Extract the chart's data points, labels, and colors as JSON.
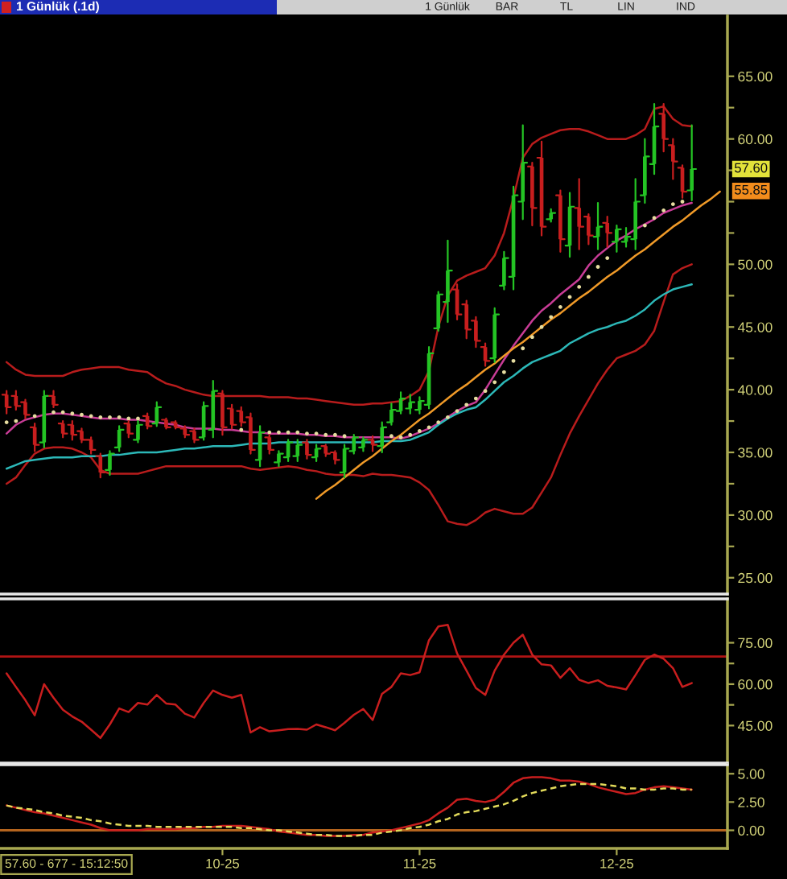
{
  "chart_data": [
    {
      "type": "candlestick",
      "title": "1 Günlük (.1d)",
      "categories": [
        null,
        null,
        null,
        null,
        null,
        null,
        null,
        null,
        null,
        null,
        null,
        null,
        null,
        null,
        null,
        null,
        null,
        null,
        null,
        null,
        null,
        null,
        null,
        null,
        null,
        null,
        null,
        null,
        null,
        null,
        null,
        null,
        null,
        null,
        null,
        null,
        null,
        null,
        null,
        null,
        null,
        null,
        null,
        null,
        null,
        null,
        null,
        null,
        null,
        null,
        null,
        null,
        null,
        null,
        null,
        null,
        null,
        null,
        null,
        null,
        null,
        null,
        null,
        null,
        null,
        null,
        null,
        null,
        null,
        null,
        null,
        null,
        null,
        null,
        null,
        null,
        null
      ],
      "ohlc": [
        [
          39.6,
          39.9,
          38.1,
          38.6
        ],
        [
          39.5,
          39.9,
          38.4,
          38.7
        ],
        [
          39.0,
          39.2,
          37.7,
          38.0
        ],
        [
          37.0,
          37.3,
          35.1,
          35.6
        ],
        [
          35.8,
          39.9,
          35.4,
          39.5
        ],
        [
          39.5,
          39.9,
          38.6,
          38.8
        ],
        [
          37.3,
          37.5,
          36.2,
          36.5
        ],
        [
          37.2,
          37.5,
          36.0,
          36.4
        ],
        [
          36.7,
          36.9,
          35.8,
          36.0
        ],
        [
          36.0,
          36.2,
          34.9,
          35.2
        ],
        [
          34.7,
          34.9,
          33.0,
          33.4
        ],
        [
          33.6,
          35.1,
          33.2,
          34.9
        ],
        [
          35.4,
          37.1,
          35.1,
          36.8
        ],
        [
          37.3,
          37.5,
          36.2,
          36.5
        ],
        [
          36.0,
          37.5,
          35.8,
          37.2
        ],
        [
          37.9,
          38.1,
          36.9,
          37.1
        ],
        [
          37.3,
          39.0,
          37.1,
          38.6
        ],
        [
          37.6,
          37.7,
          36.9,
          37.0
        ],
        [
          37.4,
          37.5,
          36.9,
          37.0
        ],
        [
          36.9,
          37.1,
          36.2,
          36.4
        ],
        [
          36.7,
          36.9,
          35.8,
          36.0
        ],
        [
          36.2,
          39.0,
          36.0,
          38.7
        ],
        [
          36.8,
          40.7,
          36.2,
          39.9
        ],
        [
          39.7,
          39.9,
          36.4,
          37.0
        ],
        [
          38.5,
          38.8,
          36.9,
          37.2
        ],
        [
          38.3,
          38.6,
          37.1,
          37.4
        ],
        [
          37.8,
          38.1,
          34.9,
          35.2
        ],
        [
          34.4,
          37.1,
          33.9,
          36.6
        ],
        [
          36.2,
          36.4,
          34.9,
          35.2
        ],
        [
          34.2,
          35.1,
          33.9,
          34.9
        ],
        [
          34.6,
          36.0,
          34.3,
          35.8
        ],
        [
          34.7,
          36.0,
          34.3,
          35.6
        ],
        [
          35.8,
          36.0,
          34.5,
          34.8
        ],
        [
          34.6,
          35.6,
          34.3,
          35.3
        ],
        [
          35.5,
          35.6,
          34.7,
          34.9
        ],
        [
          35.0,
          35.1,
          34.1,
          34.4
        ],
        [
          33.4,
          35.6,
          33.0,
          35.3
        ],
        [
          35.1,
          36.4,
          34.9,
          36.2
        ],
        [
          35.4,
          36.2,
          35.1,
          36.0
        ],
        [
          36.0,
          36.3,
          35.1,
          35.6
        ],
        [
          35.5,
          37.4,
          35.0,
          37.0
        ],
        [
          37.4,
          38.9,
          37.2,
          38.4
        ],
        [
          38.3,
          39.8,
          38.1,
          39.3
        ],
        [
          38.5,
          39.6,
          38.1,
          39.0
        ],
        [
          38.4,
          39.4,
          38.1,
          39.1
        ],
        [
          38.8,
          43.4,
          38.5,
          42.9
        ],
        [
          44.9,
          47.8,
          44.7,
          47.6
        ],
        [
          47.0,
          51.9,
          45.4,
          49.5
        ],
        [
          48.0,
          48.4,
          45.6,
          46.0
        ],
        [
          46.8,
          47.1,
          44.1,
          44.8
        ],
        [
          45.5,
          45.8,
          43.4,
          43.9
        ],
        [
          43.4,
          43.7,
          41.9,
          42.3
        ],
        [
          42.5,
          46.5,
          42.2,
          46.0
        ],
        [
          48.3,
          51.0,
          48.0,
          50.5
        ],
        [
          49.0,
          56.2,
          48.0,
          55.5
        ],
        [
          55.0,
          61.1,
          53.6,
          58.1
        ],
        [
          57.8,
          58.1,
          53.1,
          54.5
        ],
        [
          58.5,
          59.8,
          52.3,
          53.0
        ],
        [
          53.6,
          54.4,
          53.4,
          54.1
        ],
        [
          55.5,
          55.9,
          51.0,
          52.0
        ],
        [
          51.5,
          55.7,
          50.6,
          54.6
        ],
        [
          54.5,
          56.8,
          51.2,
          53.0
        ],
        [
          53.8,
          54.0,
          51.6,
          52.3
        ],
        [
          52.2,
          54.9,
          51.2,
          53.0
        ],
        [
          53.3,
          53.8,
          51.4,
          52.5
        ],
        [
          51.8,
          53.1,
          51.0,
          52.8
        ],
        [
          51.8,
          52.9,
          51.4,
          52.2
        ],
        [
          52.0,
          56.8,
          51.2,
          55.0
        ],
        [
          55.5,
          60.0,
          54.9,
          58.6
        ],
        [
          58.0,
          62.8,
          57.2,
          61.0
        ],
        [
          62.0,
          62.8,
          59.0,
          60.0
        ],
        [
          59.5,
          60.0,
          56.8,
          58.2
        ],
        [
          57.7,
          57.9,
          55.3,
          55.8
        ],
        [
          55.9,
          61.1,
          55.1,
          57.6
        ],
        null,
        null,
        null
      ],
      "colors": [
        "#c81e1e",
        "#c81e1e",
        "#c81e1e",
        "#c81e1e",
        "#24c424",
        "#c81e1e",
        "#c81e1e",
        "#c81e1e",
        "#c81e1e",
        "#c81e1e",
        "#c81e1e",
        "#24c424",
        "#24c424",
        "#c81e1e",
        "#24c424",
        "#c81e1e",
        "#24c424",
        "#c81e1e",
        "#c81e1e",
        "#c81e1e",
        "#c81e1e",
        "#24c424",
        "#24c424",
        "#c81e1e",
        "#c81e1e",
        "#c81e1e",
        "#c81e1e",
        "#24c424",
        "#c81e1e",
        "#24c424",
        "#24c424",
        "#24c424",
        "#c81e1e",
        "#24c424",
        "#c81e1e",
        "#c81e1e",
        "#24c424",
        "#24c424",
        "#24c424",
        "#c81e1e",
        "#24c424",
        "#24c424",
        "#24c424",
        "#24c424",
        "#24c424",
        "#24c424",
        "#24c424",
        "#24c424",
        "#c81e1e",
        "#c81e1e",
        "#c81e1e",
        "#c81e1e",
        "#24c424",
        "#24c424",
        "#24c424",
        "#24c424",
        "#c81e1e",
        "#c81e1e",
        "#24c424",
        "#c81e1e",
        "#24c424",
        "#c81e1e",
        "#c81e1e",
        "#24c424",
        "#c81e1e",
        "#24c424",
        "#24c424",
        "#24c424",
        "#24c424",
        "#24c424",
        "#c81e1e",
        "#c81e1e",
        "#c81e1e",
        "#24c424",
        null,
        null,
        null
      ],
      "series": [
        {
          "type": "line",
          "color": "#b81c1c",
          "values": [
            42.2,
            41.6,
            41.2,
            41.1,
            41.1,
            41.1,
            41.1,
            41.4,
            41.6,
            41.7,
            41.8,
            41.8,
            41.8,
            41.6,
            41.5,
            41.4,
            40.9,
            40.5,
            40.3,
            40.0,
            39.8,
            39.6,
            39.5,
            39.5,
            39.5,
            39.5,
            39.5,
            39.5,
            39.4,
            39.4,
            39.4,
            39.3,
            39.3,
            39.2,
            39.1,
            39.0,
            38.9,
            38.8,
            38.8,
            38.9,
            38.9,
            39.0,
            39.1,
            39.5,
            40.0,
            41.5,
            45.0,
            47.5,
            48.7,
            49.1,
            49.4,
            49.7,
            50.7,
            52.5,
            55.3,
            58.5,
            59.6,
            60.1,
            60.4,
            60.7,
            60.8,
            60.8,
            60.6,
            60.3,
            60.0,
            60.0,
            60.0,
            60.3,
            60.8,
            62.4,
            62.6,
            61.6,
            61.1,
            61.0,
            null,
            null,
            null
          ]
        },
        {
          "type": "line",
          "color": "#b81c1c",
          "values": [
            32.5,
            33.0,
            34.0,
            34.9,
            35.3,
            35.4,
            35.4,
            35.3,
            35.0,
            34.6,
            33.6,
            33.3,
            33.3,
            33.3,
            33.3,
            33.5,
            33.7,
            33.9,
            33.9,
            33.9,
            33.9,
            33.9,
            33.9,
            33.9,
            33.9,
            33.9,
            33.7,
            33.6,
            33.7,
            33.8,
            33.9,
            33.8,
            33.6,
            33.5,
            33.3,
            33.2,
            33.2,
            33.2,
            33.1,
            33.3,
            33.2,
            33.2,
            33.1,
            33.0,
            32.6,
            32.0,
            30.8,
            29.5,
            29.3,
            29.2,
            29.6,
            30.2,
            30.5,
            30.3,
            30.1,
            30.1,
            30.6,
            31.8,
            33.0,
            34.8,
            36.5,
            37.9,
            39.2,
            40.5,
            41.6,
            42.5,
            42.8,
            43.1,
            43.6,
            44.7,
            47.0,
            49.2,
            49.7,
            50.0,
            null,
            null,
            null
          ]
        },
        {
          "type": "line",
          "color": "#c83c96",
          "values": [
            36.5,
            37.2,
            37.6,
            37.8,
            38.0,
            38.1,
            38.1,
            38.0,
            37.9,
            37.8,
            37.7,
            37.7,
            37.7,
            37.6,
            37.6,
            37.5,
            37.4,
            37.3,
            37.2,
            37.0,
            36.9,
            36.9,
            36.9,
            36.8,
            36.8,
            36.7,
            36.6,
            36.6,
            36.5,
            36.5,
            36.5,
            36.5,
            36.4,
            36.4,
            36.3,
            36.3,
            36.2,
            36.2,
            36.2,
            36.2,
            36.2,
            36.2,
            36.1,
            36.3,
            36.6,
            36.9,
            37.3,
            37.8,
            38.3,
            38.7,
            39.0,
            40.0,
            41.2,
            42.4,
            43.5,
            44.5,
            45.5,
            46.3,
            46.9,
            47.6,
            48.2,
            48.8,
            49.9,
            50.7,
            51.3,
            51.9,
            52.3,
            52.8,
            53.2,
            53.6,
            54.1,
            54.4,
            54.7,
            54.9,
            null,
            null,
            null
          ]
        },
        {
          "type": "line",
          "color": "#2cb8b8",
          "values": [
            33.7,
            34.0,
            34.3,
            34.4,
            34.5,
            34.6,
            34.6,
            34.6,
            34.7,
            34.7,
            34.7,
            34.8,
            34.8,
            34.9,
            35.0,
            35.0,
            35.0,
            35.1,
            35.2,
            35.3,
            35.3,
            35.4,
            35.5,
            35.5,
            35.5,
            35.6,
            35.7,
            35.7,
            35.7,
            35.8,
            35.8,
            35.8,
            35.8,
            35.8,
            35.8,
            35.8,
            35.8,
            35.8,
            35.8,
            35.8,
            35.9,
            35.9,
            35.9,
            36.0,
            36.3,
            36.6,
            37.2,
            37.7,
            38.1,
            38.4,
            38.6,
            39.2,
            39.9,
            40.6,
            41.1,
            41.7,
            42.2,
            42.5,
            42.8,
            43.1,
            43.7,
            44.1,
            44.5,
            44.8,
            45.0,
            45.3,
            45.5,
            45.9,
            46.4,
            47.1,
            47.6,
            48.0,
            48.2,
            48.4,
            null,
            null,
            null
          ]
        },
        {
          "type": "scatter",
          "marker": "circle",
          "color": "#e6dca0",
          "values": [
            37.4,
            37.5,
            null,
            37.9,
            null,
            38.2,
            38.2,
            38.1,
            38.0,
            37.9,
            37.8,
            37.8,
            37.8,
            37.7,
            37.7,
            null,
            null,
            null,
            null,
            null,
            null,
            null,
            null,
            null,
            null,
            36.8,
            null,
            null,
            36.6,
            36.6,
            36.6,
            36.6,
            36.5,
            36.5,
            36.4,
            36.4,
            36.3,
            null,
            null,
            null,
            null,
            36.3,
            36.2,
            36.4,
            36.7,
            37.0,
            37.4,
            37.8,
            38.3,
            38.8,
            39.3,
            39.9,
            40.6,
            41.4,
            42.3,
            43.3,
            44.2,
            45.0,
            45.8,
            46.6,
            47.4,
            48.2,
            49.0,
            49.8,
            50.5,
            null,
            null,
            null,
            53.1,
            53.7,
            54.3,
            54.8,
            55.0,
            null,
            null,
            null,
            null
          ]
        },
        {
          "type": "line",
          "color": "#f09a28",
          "values": [
            null,
            null,
            null,
            null,
            null,
            null,
            null,
            null,
            null,
            null,
            null,
            null,
            null,
            null,
            null,
            null,
            null,
            null,
            null,
            null,
            null,
            null,
            null,
            null,
            null,
            null,
            null,
            null,
            null,
            null,
            null,
            null,
            null,
            31.3,
            31.9,
            32.4,
            33.0,
            33.6,
            34.2,
            34.7,
            35.3,
            35.9,
            36.4,
            37.0,
            37.6,
            38.1,
            38.7,
            39.3,
            39.9,
            40.4,
            41.0,
            41.6,
            42.1,
            42.7,
            43.3,
            43.8,
            44.4,
            45.0,
            45.6,
            46.1,
            46.7,
            47.3,
            47.8,
            48.4,
            49.0,
            49.5,
            50.1,
            50.7,
            51.2,
            51.8,
            52.4,
            53.0,
            53.5,
            54.1,
            54.7,
            55.2,
            55.8
          ]
        }
      ],
      "ylim": [
        23.7,
        69.8
      ],
      "yticks": [
        {
          "value": 25,
          "label": "25.00"
        },
        {
          "value": 27.5,
          "label": null
        },
        {
          "value": 30,
          "label": "30.00"
        },
        {
          "value": 32.5,
          "label": null
        },
        {
          "value": 35,
          "label": "35.00"
        },
        {
          "value": 37.5,
          "label": null
        },
        {
          "value": 40,
          "label": "40.00"
        },
        {
          "value": 42.5,
          "label": null
        },
        {
          "value": 45,
          "label": "45.00"
        },
        {
          "value": 47.5,
          "label": null
        },
        {
          "value": 50,
          "label": "50.00"
        },
        {
          "value": 52.5,
          "label": null
        },
        {
          "value": 55,
          "label": null
        },
        {
          "value": 57.5,
          "label": null
        },
        {
          "value": 60,
          "label": "60.00"
        },
        {
          "value": 62.5,
          "label": null
        },
        {
          "value": 65,
          "label": "65.00"
        }
      ],
      "tick_labels": "y",
      "annotations": [
        "1 Günlük",
        "BAR",
        "TL",
        "LIN",
        "IND",
        {
          "text": "57.60",
          "y": 57.6
        },
        {
          "text": "55.85",
          "y": 55.85
        }
      ]
    },
    {
      "type": "line",
      "categories": [
        null,
        null,
        null,
        null,
        null,
        null,
        null,
        null,
        null,
        null,
        null,
        null,
        null,
        null,
        null,
        null,
        null,
        null,
        null,
        null,
        null,
        null,
        null,
        null,
        null,
        null,
        null,
        null,
        null,
        null,
        null,
        null,
        null,
        null,
        null,
        null,
        null,
        null,
        null,
        null,
        null,
        null,
        null,
        null,
        null,
        null,
        null,
        null,
        null,
        null,
        null,
        null,
        null,
        null,
        null,
        null,
        null,
        null,
        null,
        null,
        null,
        null,
        null,
        null,
        null,
        null,
        null,
        null,
        null,
        null,
        null,
        null,
        null,
        null,
        null,
        null,
        null
      ],
      "series": [
        {
          "color": "#c81e1e",
          "values": [
            63.9,
            59.0,
            54.2,
            48.7,
            60.0,
            55.1,
            50.7,
            48.3,
            46.4,
            43.5,
            40.5,
            45.4,
            51.2,
            49.9,
            53.2,
            52.6,
            56.1,
            53.0,
            52.6,
            49.3,
            47.9,
            53.2,
            57.7,
            56.1,
            55.1,
            56.1,
            42.5,
            44.4,
            42.9,
            43.3,
            43.7,
            43.8,
            43.5,
            45.4,
            44.4,
            43.3,
            46.0,
            48.9,
            51.0,
            47.0,
            56.5,
            59.0,
            63.9,
            63.3,
            64.3,
            75.9,
            80.9,
            81.5,
            71.1,
            64.9,
            58.6,
            56.1,
            64.9,
            70.7,
            75.0,
            77.9,
            70.7,
            67.2,
            66.8,
            62.3,
            65.8,
            61.6,
            60.4,
            61.4,
            59.4,
            58.8,
            58.1,
            63.3,
            68.8,
            70.7,
            69.2,
            65.8,
            59.0,
            60.4,
            null,
            null,
            null
          ]
        }
      ],
      "ylim": [
        31.4,
        90.9
      ],
      "yticks": [
        {
          "value": 45,
          "label": "45.00"
        },
        {
          "value": 52.5,
          "label": null
        },
        {
          "value": 60,
          "label": "60.00"
        },
        {
          "value": 67.5,
          "label": null
        },
        {
          "value": 75,
          "label": "75.00"
        }
      ],
      "ref_lines": [
        {
          "axis": "y",
          "value": 70,
          "color": "#b01414"
        }
      ],
      "tick_labels": "y"
    },
    {
      "type": "line",
      "categories": [
        null,
        null,
        null,
        null,
        null,
        null,
        null,
        null,
        null,
        null,
        null,
        null,
        null,
        null,
        null,
        null,
        null,
        null,
        null,
        null,
        null,
        null,
        null,
        "10-25",
        null,
        null,
        null,
        null,
        null,
        null,
        null,
        null,
        null,
        null,
        null,
        null,
        null,
        null,
        null,
        null,
        null,
        null,
        null,
        null,
        "11-25",
        null,
        null,
        null,
        null,
        null,
        null,
        null,
        null,
        null,
        null,
        null,
        null,
        null,
        null,
        null,
        null,
        null,
        null,
        null,
        null,
        "12-25",
        null,
        null,
        null,
        null,
        null,
        null,
        null,
        null,
        null,
        null,
        null
      ],
      "series": [
        {
          "color": "#c81e1e",
          "values": [
            2.2,
            2.0,
            1.8,
            1.6,
            1.5,
            1.3,
            1.1,
            0.9,
            0.7,
            0.5,
            0.2,
            0.0,
            0.0,
            0.0,
            0.0,
            0.1,
            0.1,
            0.1,
            0.1,
            0.2,
            0.2,
            0.3,
            0.3,
            0.4,
            0.4,
            0.4,
            0.3,
            0.2,
            0.1,
            -0.1,
            -0.2,
            -0.3,
            -0.4,
            -0.4,
            -0.5,
            -0.5,
            -0.5,
            -0.4,
            -0.4,
            -0.2,
            -0.1,
            0.0,
            0.2,
            0.4,
            0.6,
            0.9,
            1.5,
            2.0,
            2.7,
            2.8,
            2.6,
            2.5,
            2.7,
            3.4,
            4.2,
            4.6,
            4.7,
            4.7,
            4.6,
            4.4,
            4.4,
            4.3,
            4.1,
            3.8,
            3.6,
            3.4,
            3.2,
            3.3,
            3.6,
            3.8,
            3.9,
            3.8,
            3.7,
            3.6,
            null,
            null,
            null
          ]
        },
        {
          "color": "#e2da5a",
          "line_style": "dashed",
          "values": [
            2.2,
            2.0,
            1.9,
            1.8,
            1.6,
            1.5,
            1.3,
            1.2,
            1.1,
            0.9,
            0.8,
            0.6,
            0.5,
            0.4,
            0.4,
            0.4,
            0.3,
            0.3,
            0.3,
            0.3,
            0.3,
            0.3,
            0.3,
            0.3,
            0.3,
            0.2,
            0.2,
            0.1,
            0.0,
            0.0,
            -0.1,
            -0.2,
            -0.3,
            -0.4,
            -0.4,
            -0.5,
            -0.5,
            -0.5,
            -0.4,
            -0.4,
            -0.2,
            -0.1,
            0.0,
            0.2,
            0.3,
            0.5,
            0.8,
            1.0,
            1.4,
            1.6,
            1.7,
            1.9,
            2.1,
            2.3,
            2.6,
            3.0,
            3.3,
            3.5,
            3.7,
            3.9,
            4.0,
            4.1,
            4.1,
            4.1,
            4.0,
            3.9,
            3.7,
            3.7,
            3.6,
            3.6,
            3.7,
            3.7,
            3.6,
            3.6,
            null,
            null,
            null
          ]
        }
      ],
      "ylim": [
        -1.6,
        5.8
      ],
      "yticks": [
        {
          "value": 0,
          "label": "0.00"
        },
        {
          "value": 2.5,
          "label": "2.50"
        },
        {
          "value": 5,
          "label": "5.00"
        }
      ],
      "ref_lines": [
        {
          "axis": "y",
          "value": 0,
          "color": "#b4641e"
        }
      ],
      "annotations": [
        "57.60 - 677 - 15:12:50"
      ]
    }
  ]
}
